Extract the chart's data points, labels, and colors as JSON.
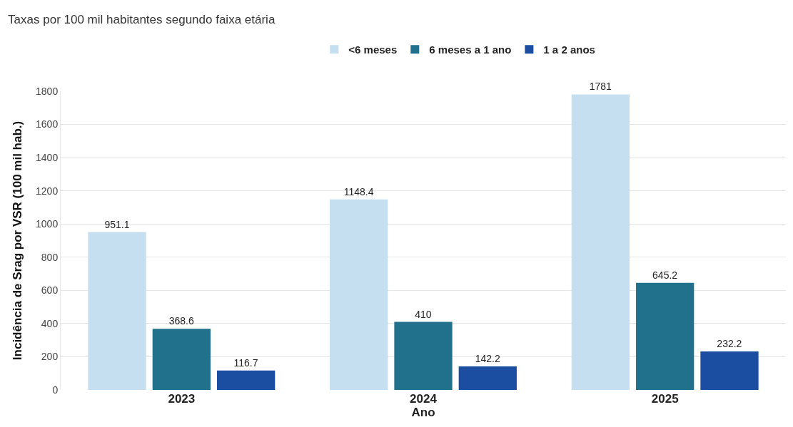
{
  "chart_data": {
    "type": "bar",
    "title": "Taxas por 100 mil habitantes segundo faixa etária",
    "xlabel": "Ano",
    "ylabel": "Incidência de Srag por VSR (100 mil hab.)",
    "categories": [
      "2023",
      "2024",
      "2025"
    ],
    "series": [
      {
        "name": "<6 meses",
        "color": "#c5dff0",
        "values": [
          951.1,
          1148.4,
          1781
        ]
      },
      {
        "name": "6 meses a 1 ano",
        "color": "#22718c",
        "values": [
          368.6,
          410,
          645.2
        ]
      },
      {
        "name": "1 a 2 anos",
        "color": "#1b4ea0",
        "values": [
          116.7,
          142.2,
          232.2
        ]
      }
    ],
    "ylim": [
      0,
      1800
    ],
    "yticks": [
      0,
      200,
      400,
      600,
      800,
      1000,
      1200,
      1400,
      1600,
      1800
    ],
    "grid": "y",
    "legend": "top",
    "data_labels": true
  }
}
